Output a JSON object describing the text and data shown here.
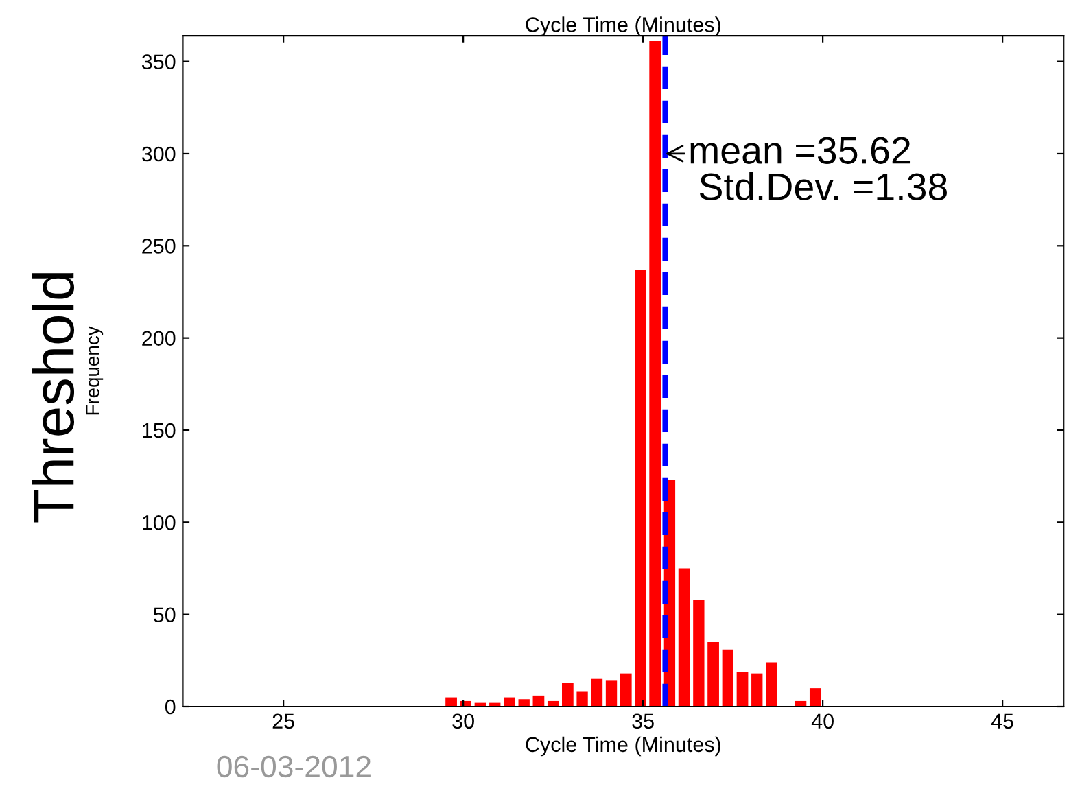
{
  "chart_data": {
    "type": "histogram",
    "title": "Cycle Time (Minutes)",
    "xlabel": "Cycle Time (Minutes)",
    "ylabel": "Frequency",
    "bins": [
      29.46,
      29.87,
      30.27,
      30.68,
      31.08,
      31.49,
      31.89,
      32.3,
      32.7,
      33.11,
      33.51,
      33.92,
      34.32,
      34.73,
      35.13,
      35.54,
      35.94,
      36.35,
      36.75,
      37.16,
      37.56,
      37.97,
      38.37,
      38.78,
      39.18,
      39.59,
      39.99
    ],
    "values": [
      5,
      3,
      2,
      2,
      5,
      4,
      6,
      3,
      13,
      8,
      15,
      14,
      18,
      237,
      361,
      123,
      75,
      58,
      35,
      31,
      19,
      18,
      24,
      0,
      3,
      10
    ],
    "color": "#ff0000",
    "xlim": [
      22.2,
      46.7
    ],
    "ylim": [
      0,
      364
    ],
    "xticks": [
      25,
      30,
      35,
      40,
      45
    ],
    "yticks": [
      0,
      50,
      100,
      150,
      200,
      250,
      300,
      350
    ],
    "ref_lines": [
      {
        "axis": "x",
        "value": 35.62,
        "color": "#0000ff",
        "line_style": "dashed"
      }
    ],
    "annotations": [
      {
        "text": "mean =35.62",
        "x": 35.62,
        "y": 300
      },
      "Std.Dev. =1.38",
      "Threshold",
      "06-03-2012"
    ],
    "grid": false,
    "legend": false
  }
}
